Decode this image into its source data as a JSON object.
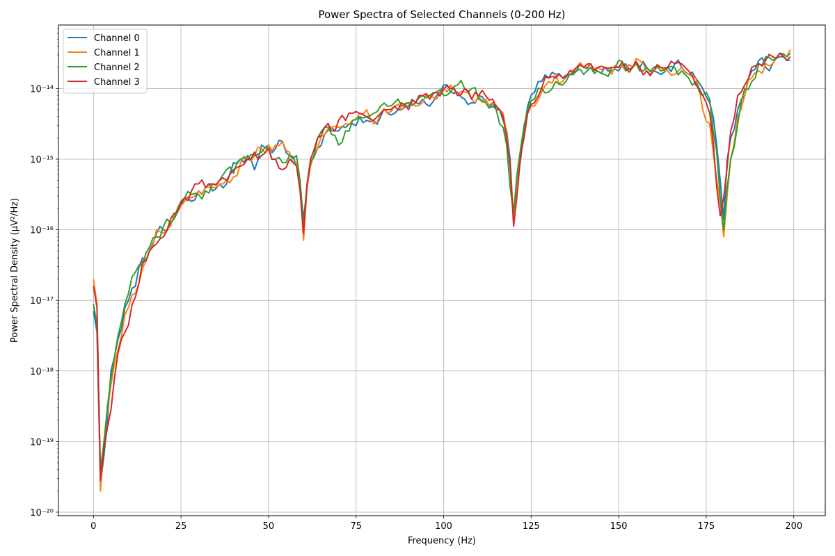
{
  "chart_data": {
    "type": "line",
    "title": "Power Spectra of Selected Channels (0-200 Hz)",
    "xlabel": "Frequency (Hz)",
    "ylabel": "Power Spectral Density (µV²/Hz)",
    "xlim": [
      -10,
      209
    ],
    "ylim_exp": [
      -20.05,
      -13.1
    ],
    "y_scale": "log",
    "grid": true,
    "legend_position": "top-left",
    "x_ticks": [
      0,
      25,
      50,
      75,
      100,
      125,
      150,
      175,
      200
    ],
    "y_ticks": [
      {
        "exp": -20,
        "label": "10⁻²⁰"
      },
      {
        "exp": -19,
        "label": "10⁻¹⁹"
      },
      {
        "exp": -18,
        "label": "10⁻¹⁸"
      },
      {
        "exp": -17,
        "label": "10⁻¹⁷"
      },
      {
        "exp": -16,
        "label": "10⁻¹⁶"
      },
      {
        "exp": -15,
        "label": "10⁻¹⁵"
      },
      {
        "exp": -14,
        "label": "10⁻¹⁴"
      }
    ],
    "x": [
      0,
      1,
      2,
      3,
      4,
      5,
      6,
      7,
      8,
      9,
      10,
      12,
      14,
      16,
      18,
      20,
      22,
      24,
      26,
      28,
      30,
      32,
      34,
      36,
      38,
      40,
      42,
      44,
      46,
      48,
      50,
      52,
      54,
      56,
      58,
      59,
      60,
      61,
      62,
      64,
      66,
      68,
      70,
      72,
      74,
      76,
      78,
      80,
      82,
      84,
      86,
      88,
      90,
      92,
      94,
      96,
      98,
      100,
      102,
      104,
      106,
      108,
      110,
      112,
      114,
      116,
      117,
      118,
      119,
      120,
      121,
      122,
      124,
      126,
      128,
      130,
      132,
      134,
      136,
      138,
      140,
      142,
      144,
      146,
      148,
      150,
      152,
      154,
      156,
      158,
      160,
      162,
      164,
      166,
      168,
      170,
      172,
      174,
      176,
      177,
      178,
      179,
      180,
      181,
      182,
      184,
      186,
      188,
      190,
      192,
      194,
      196,
      198,
      199
    ],
    "series": [
      {
        "name": "Channel 0",
        "color": "#1f77b4",
        "log10_values": [
          -17.15,
          -17.45,
          -19.6,
          -19.2,
          -18.7,
          -18.0,
          -17.8,
          -17.55,
          -17.4,
          -17.1,
          -17.0,
          -16.8,
          -16.4,
          -16.3,
          -16.05,
          -16.0,
          -15.9,
          -15.75,
          -15.55,
          -15.6,
          -15.45,
          -15.4,
          -15.45,
          -15.35,
          -15.35,
          -15.05,
          -15.0,
          -14.95,
          -15.15,
          -14.8,
          -14.8,
          -14.85,
          -14.75,
          -14.95,
          -15.1,
          -15.35,
          -15.85,
          -15.4,
          -15.05,
          -14.85,
          -14.65,
          -14.55,
          -14.6,
          -14.55,
          -14.5,
          -14.4,
          -14.45,
          -14.45,
          -14.4,
          -14.35,
          -14.35,
          -14.3,
          -14.25,
          -14.2,
          -14.15,
          -14.25,
          -14.1,
          -13.95,
          -14.05,
          -14.05,
          -14.15,
          -14.2,
          -14.1,
          -14.2,
          -14.2,
          -14.3,
          -14.45,
          -14.6,
          -15.0,
          -15.9,
          -15.3,
          -15.0,
          -14.25,
          -14.05,
          -13.9,
          -13.85,
          -13.8,
          -13.85,
          -13.8,
          -13.75,
          -13.7,
          -13.65,
          -13.75,
          -13.7,
          -13.75,
          -13.75,
          -13.65,
          -13.7,
          -13.7,
          -13.7,
          -13.75,
          -13.8,
          -13.7,
          -13.65,
          -13.7,
          -13.8,
          -13.85,
          -14.0,
          -14.2,
          -14.4,
          -14.8,
          -15.3,
          -15.85,
          -15.0,
          -14.7,
          -14.3,
          -14.1,
          -13.75,
          -13.6,
          -13.7,
          -13.65,
          -13.55,
          -13.6,
          -13.6
        ],
        "smooth": true
      },
      {
        "name": "Channel 1",
        "color": "#ff7f0e",
        "log10_values": [
          -16.7,
          -17.05,
          -19.7,
          -19.0,
          -18.55,
          -18.2,
          -17.9,
          -17.7,
          -17.5,
          -17.2,
          -17.1,
          -16.9,
          -16.55,
          -16.3,
          -16.0,
          -16.05,
          -15.95,
          -15.75,
          -15.6,
          -15.55,
          -15.45,
          -15.4,
          -15.4,
          -15.35,
          -15.3,
          -15.25,
          -15.05,
          -15.0,
          -14.95,
          -14.85,
          -14.8,
          -14.8,
          -14.75,
          -14.9,
          -15.05,
          -15.4,
          -16.15,
          -15.4,
          -15.1,
          -14.85,
          -14.65,
          -14.55,
          -14.55,
          -14.5,
          -14.45,
          -14.35,
          -14.3,
          -14.5,
          -14.35,
          -14.35,
          -14.25,
          -14.3,
          -14.2,
          -14.25,
          -14.2,
          -14.1,
          -14.15,
          -14.0,
          -13.95,
          -14.1,
          -14.05,
          -14.15,
          -14.1,
          -14.15,
          -14.2,
          -14.3,
          -14.35,
          -14.65,
          -15.1,
          -15.85,
          -15.4,
          -14.95,
          -14.35,
          -14.25,
          -14.05,
          -13.9,
          -13.8,
          -13.9,
          -13.75,
          -13.7,
          -13.7,
          -13.65,
          -13.7,
          -13.7,
          -13.8,
          -13.7,
          -13.75,
          -13.7,
          -13.6,
          -13.75,
          -13.75,
          -13.7,
          -13.75,
          -13.8,
          -13.7,
          -13.8,
          -13.85,
          -14.3,
          -14.5,
          -14.9,
          -15.3,
          -15.6,
          -16.1,
          -15.5,
          -15.0,
          -14.4,
          -14.1,
          -13.85,
          -13.75,
          -13.65,
          -13.65,
          -13.5,
          -13.55,
          -13.45
        ],
        "smooth": true
      },
      {
        "name": "Channel 2",
        "color": "#2ca02c",
        "log10_values": [
          -17.05,
          -17.35,
          -19.4,
          -19.0,
          -18.5,
          -18.1,
          -17.8,
          -17.5,
          -17.3,
          -17.05,
          -16.9,
          -16.6,
          -16.5,
          -16.25,
          -16.1,
          -15.95,
          -15.9,
          -15.7,
          -15.55,
          -15.5,
          -15.5,
          -15.45,
          -15.35,
          -15.3,
          -15.15,
          -15.2,
          -15.0,
          -15.0,
          -14.95,
          -14.9,
          -14.85,
          -15.0,
          -15.05,
          -14.95,
          -14.95,
          -15.3,
          -15.95,
          -15.35,
          -15.05,
          -14.7,
          -14.55,
          -14.65,
          -14.8,
          -14.6,
          -14.45,
          -14.4,
          -14.4,
          -14.35,
          -14.25,
          -14.25,
          -14.2,
          -14.25,
          -14.2,
          -14.2,
          -14.1,
          -14.1,
          -14.05,
          -14.1,
          -14.05,
          -13.95,
          -14.0,
          -14.0,
          -14.15,
          -14.2,
          -14.25,
          -14.5,
          -14.55,
          -14.8,
          -15.4,
          -15.75,
          -15.2,
          -14.85,
          -14.3,
          -14.15,
          -14.0,
          -14.05,
          -13.9,
          -13.95,
          -13.8,
          -13.75,
          -13.8,
          -13.7,
          -13.75,
          -13.8,
          -13.7,
          -13.6,
          -13.75,
          -13.7,
          -13.75,
          -13.7,
          -13.7,
          -13.75,
          -13.7,
          -13.7,
          -13.75,
          -13.85,
          -13.9,
          -14.1,
          -14.15,
          -14.6,
          -14.9,
          -15.55,
          -16.0,
          -15.4,
          -15.0,
          -14.5,
          -14.0,
          -13.9,
          -13.65,
          -13.55,
          -13.6,
          -13.5,
          -13.55,
          -13.5
        ],
        "smooth": true
      },
      {
        "name": "Channel 3",
        "color": "#d62728",
        "log10_values": [
          -16.8,
          -17.1,
          -19.55,
          -19.1,
          -18.8,
          -18.55,
          -18.1,
          -17.75,
          -17.55,
          -17.45,
          -17.35,
          -16.95,
          -16.45,
          -16.3,
          -16.2,
          -16.1,
          -15.85,
          -15.75,
          -15.55,
          -15.45,
          -15.35,
          -15.4,
          -15.35,
          -15.3,
          -15.3,
          -15.15,
          -15.1,
          -15.0,
          -14.9,
          -14.95,
          -14.85,
          -15.0,
          -15.15,
          -15.0,
          -15.1,
          -15.45,
          -16.05,
          -15.35,
          -15.0,
          -14.7,
          -14.55,
          -14.6,
          -14.45,
          -14.45,
          -14.35,
          -14.35,
          -14.4,
          -14.45,
          -14.35,
          -14.3,
          -14.25,
          -14.2,
          -14.3,
          -14.2,
          -14.1,
          -14.15,
          -14.05,
          -14.0,
          -14.0,
          -14.1,
          -14.0,
          -14.15,
          -14.1,
          -14.1,
          -14.15,
          -14.3,
          -14.4,
          -14.7,
          -15.1,
          -15.95,
          -15.5,
          -14.95,
          -14.35,
          -14.2,
          -14.0,
          -13.85,
          -13.85,
          -13.85,
          -13.75,
          -13.7,
          -13.7,
          -13.65,
          -13.7,
          -13.7,
          -13.7,
          -13.7,
          -13.7,
          -13.7,
          -13.7,
          -13.75,
          -13.75,
          -13.7,
          -13.7,
          -13.65,
          -13.65,
          -13.75,
          -13.95,
          -14.1,
          -14.35,
          -14.75,
          -15.4,
          -15.8,
          -15.55,
          -15.1,
          -14.6,
          -14.1,
          -13.95,
          -13.7,
          -13.65,
          -13.6,
          -13.55,
          -13.5,
          -13.6,
          -13.55
        ],
        "smooth": true
      }
    ]
  }
}
